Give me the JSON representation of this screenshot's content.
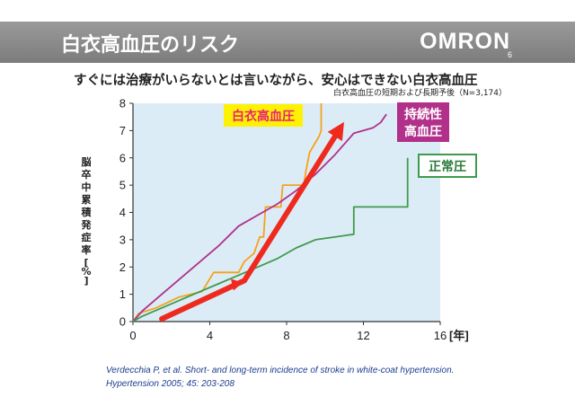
{
  "slide": {
    "title": "白衣高血圧のリスク",
    "logo": "OMRON",
    "page_number": "6",
    "subtitle": "すぐには治療がいらないとは言いながら、安心はできない白衣高血圧",
    "note": "白衣高血圧の短期および長期予後（N=3,174）",
    "citation_line1": "Verdecchia P, et al. Short- and long-term incidence of stroke in white-coat hypertension.",
    "citation_line2": "Hypertension 2005; 45: 203-208"
  },
  "chart_data": {
    "type": "line",
    "title": "",
    "xlabel": "[年]",
    "ylabel": "脳卒中累積発症率[%]",
    "xlim": [
      0,
      16
    ],
    "ylim": [
      0,
      8
    ],
    "xticks": [
      "0",
      "4",
      "8",
      "12",
      "16"
    ],
    "yticks": [
      "0",
      "1",
      "2",
      "3",
      "4",
      "5",
      "6",
      "7",
      "8"
    ],
    "grid": false,
    "plot_background": "#dcecf6",
    "series": [
      {
        "name": "白衣高血圧",
        "color": "#f5a21c",
        "label_bg": "#fff200",
        "label_color": "#e8207a",
        "points": [
          [
            0,
            0
          ],
          [
            0.3,
            0.3
          ],
          [
            1.2,
            0.5
          ],
          [
            2.4,
            0.9
          ],
          [
            3.6,
            1.1
          ],
          [
            4.2,
            1.8
          ],
          [
            5.5,
            1.8
          ],
          [
            5.8,
            2.2
          ],
          [
            6.3,
            2.5
          ],
          [
            6.6,
            3.1
          ],
          [
            6.8,
            3.1
          ],
          [
            6.9,
            4.2
          ],
          [
            7.7,
            4.2
          ],
          [
            7.8,
            5.0
          ],
          [
            8.9,
            5.0
          ],
          [
            9.0,
            5.5
          ],
          [
            9.2,
            6.2
          ],
          [
            9.7,
            6.8
          ],
          [
            9.8,
            7.0
          ],
          [
            9.8,
            8.0
          ]
        ]
      },
      {
        "name": "持続性高血圧",
        "color": "#b0308a",
        "label_bg": "#b0308a",
        "label_color": "#ffffff",
        "points": [
          [
            0,
            0
          ],
          [
            0.5,
            0.4
          ],
          [
            1.5,
            1.0
          ],
          [
            2.5,
            1.6
          ],
          [
            3.5,
            2.2
          ],
          [
            4.5,
            2.8
          ],
          [
            5.5,
            3.5
          ],
          [
            6.5,
            3.9
          ],
          [
            7.5,
            4.3
          ],
          [
            8.5,
            4.8
          ],
          [
            9.5,
            5.4
          ],
          [
            10.5,
            6.1
          ],
          [
            11.5,
            6.9
          ],
          [
            12.5,
            7.1
          ],
          [
            12.9,
            7.3
          ],
          [
            13.2,
            7.6
          ]
        ]
      },
      {
        "name": "正常圧",
        "color": "#3e9b4c",
        "label_bg": "#ffffff",
        "label_color": "#2b7a3a",
        "border": "#3e9b4c",
        "points": [
          [
            0,
            0
          ],
          [
            0.5,
            0.2
          ],
          [
            1.5,
            0.5
          ],
          [
            2.5,
            0.8
          ],
          [
            3.5,
            1.1
          ],
          [
            4.5,
            1.4
          ],
          [
            5.5,
            1.7
          ],
          [
            6.5,
            2.0
          ],
          [
            7.5,
            2.3
          ],
          [
            8.5,
            2.7
          ],
          [
            9.5,
            3.0
          ],
          [
            11.5,
            3.2
          ],
          [
            11.5,
            4.2
          ],
          [
            14.3,
            4.2
          ],
          [
            14.3,
            6.0
          ]
        ]
      }
    ],
    "annotation": {
      "kind": "arrow",
      "color": "#ee2a1f",
      "points": [
        [
          1.5,
          0.1
        ],
        [
          5.8,
          1.5
        ],
        [
          10.8,
          7.1
        ]
      ]
    }
  }
}
